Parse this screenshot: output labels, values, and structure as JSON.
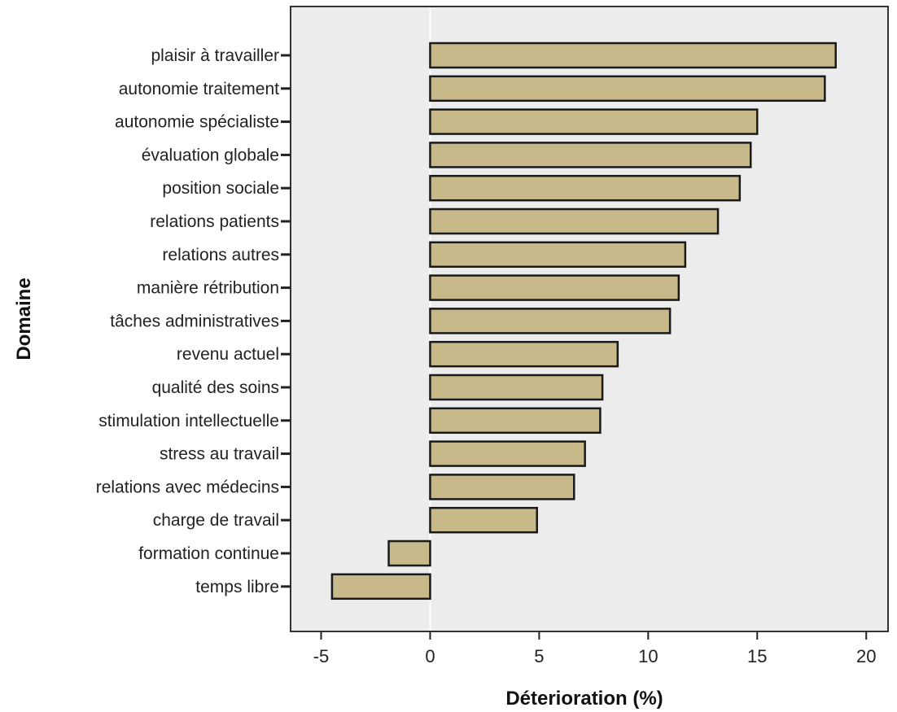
{
  "chart_data": {
    "type": "bar",
    "orientation": "horizontal",
    "categories": [
      "plaisir à travailler",
      "autonomie traitement",
      "autonomie spécialiste",
      "évaluation globale",
      "position sociale",
      "relations patients",
      "relations autres",
      "manière rétribution",
      "tâches administratives",
      "revenu actuel",
      "qualité des soins",
      "stimulation intellectuelle",
      "stress au travail",
      "relations avec médecins",
      "charge de travail",
      "formation continue",
      "temps libre"
    ],
    "values": [
      18.6,
      18.1,
      15.0,
      14.7,
      14.2,
      13.2,
      11.7,
      11.4,
      11.0,
      8.6,
      7.9,
      7.8,
      7.1,
      6.6,
      4.9,
      -1.9,
      -4.5
    ],
    "xlabel": "Déterioration (%)",
    "ylabel": "Domaine",
    "xlim": [
      -6.4,
      21.0
    ],
    "xticks": [
      -5,
      0,
      5,
      10,
      15,
      20
    ],
    "xtick_labels": [
      "-5",
      "0",
      "5",
      "10",
      "15",
      "20"
    ],
    "grid": false,
    "bar_color": "#c8b98a",
    "bar_edge_color": "#1a1a1a",
    "plot_background": "#ececec"
  }
}
